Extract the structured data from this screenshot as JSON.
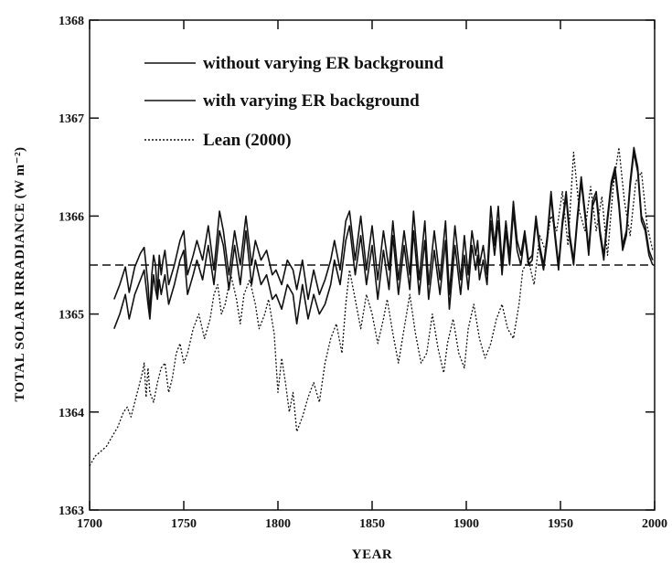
{
  "chart_data": {
    "type": "line",
    "xlabel": "YEAR",
    "ylabel": "TOTAL SOLAR IRRADIANCE (W m⁻²)",
    "xlim": [
      1700,
      2000
    ],
    "ylim": [
      1363,
      1368
    ],
    "xticks": [
      "1700",
      "1750",
      "1800",
      "1850",
      "1900",
      "1950",
      "2000"
    ],
    "yticks": [
      "1363",
      "1364",
      "1365",
      "1366",
      "1367",
      "1368"
    ],
    "grid": false,
    "legend_position": "top-left",
    "reference_line": {
      "style": "dashed",
      "y": 1365.5
    },
    "series": [
      {
        "name": "without varying ER background",
        "style": "solid",
        "x": [
          1713,
          1716,
          1719,
          1721,
          1724,
          1727,
          1729,
          1731,
          1732,
          1733,
          1734,
          1735,
          1736,
          1737,
          1738,
          1739,
          1740,
          1742,
          1745,
          1748,
          1750,
          1752,
          1755,
          1757,
          1760,
          1763,
          1766,
          1769,
          1771,
          1774,
          1777,
          1780,
          1783,
          1786,
          1788,
          1791,
          1794,
          1797,
          1799,
          1802,
          1805,
          1808,
          1810,
          1813,
          1816,
          1819,
          1822,
          1825,
          1828,
          1830,
          1833,
          1836,
          1838,
          1841,
          1844,
          1847,
          1850,
          1853,
          1856,
          1859,
          1861,
          1864,
          1867,
          1870,
          1872,
          1875,
          1878,
          1880,
          1883,
          1886,
          1889,
          1891,
          1894,
          1897,
          1899,
          1901,
          1903,
          1905,
          1906,
          1907,
          1909,
          1911,
          1913,
          1915,
          1917,
          1919,
          1921,
          1923,
          1925,
          1927,
          1929,
          1931,
          1933,
          1935,
          1937,
          1939,
          1941,
          1943,
          1945,
          1947,
          1949,
          1951,
          1953,
          1955,
          1957,
          1959,
          1961,
          1963,
          1965,
          1967,
          1969,
          1971,
          1973,
          1975,
          1977,
          1979,
          1981,
          1983,
          1985,
          1987,
          1989,
          1991,
          1993,
          1995,
          1997,
          1999
        ],
        "values": [
          1365.15,
          1365.3,
          1365.48,
          1365.22,
          1365.48,
          1365.62,
          1365.68,
          1365.3,
          1365.0,
          1365.4,
          1365.6,
          1365.5,
          1365.2,
          1365.6,
          1365.4,
          1365.55,
          1365.65,
          1365.3,
          1365.5,
          1365.75,
          1365.85,
          1365.4,
          1365.6,
          1365.75,
          1365.55,
          1365.9,
          1365.45,
          1366.05,
          1365.85,
          1365.4,
          1365.85,
          1365.5,
          1366.0,
          1365.5,
          1365.75,
          1365.55,
          1365.65,
          1365.4,
          1365.45,
          1365.3,
          1365.55,
          1365.45,
          1365.25,
          1365.55,
          1365.15,
          1365.45,
          1365.2,
          1365.35,
          1365.55,
          1365.75,
          1365.45,
          1365.95,
          1366.05,
          1365.55,
          1366.0,
          1365.45,
          1365.9,
          1365.35,
          1365.85,
          1365.45,
          1365.95,
          1365.35,
          1365.85,
          1365.4,
          1366.05,
          1365.35,
          1365.95,
          1365.3,
          1365.85,
          1365.35,
          1365.95,
          1365.2,
          1365.9,
          1365.35,
          1365.8,
          1365.4,
          1365.85,
          1365.6,
          1365.75,
          1365.5,
          1365.7,
          1365.4,
          1366.1,
          1365.7,
          1366.1,
          1365.5,
          1365.95,
          1365.6,
          1366.15,
          1365.75,
          1365.6,
          1365.85,
          1365.55,
          1365.6,
          1366.0,
          1365.7,
          1365.5,
          1365.8,
          1366.25,
          1365.85,
          1365.5,
          1365.95,
          1366.25,
          1365.8,
          1365.55,
          1366.0,
          1366.4,
          1366.05,
          1365.65,
          1366.15,
          1366.25,
          1365.85,
          1365.6,
          1366.0,
          1366.35,
          1366.5,
          1366.15,
          1365.7,
          1365.85,
          1366.35,
          1366.7,
          1366.5,
          1366.0,
          1365.9,
          1365.65,
          1365.55
        ]
      },
      {
        "name": "with varying ER background",
        "style": "solid",
        "x": [
          1713,
          1716,
          1719,
          1721,
          1724,
          1727,
          1729,
          1731,
          1732,
          1733,
          1734,
          1735,
          1736,
          1737,
          1738,
          1739,
          1740,
          1742,
          1745,
          1748,
          1750,
          1752,
          1755,
          1757,
          1760,
          1763,
          1766,
          1769,
          1771,
          1774,
          1777,
          1780,
          1783,
          1786,
          1788,
          1791,
          1794,
          1797,
          1799,
          1802,
          1805,
          1808,
          1810,
          1813,
          1816,
          1819,
          1822,
          1825,
          1828,
          1830,
          1833,
          1836,
          1838,
          1841,
          1844,
          1847,
          1850,
          1853,
          1856,
          1859,
          1861,
          1864,
          1867,
          1870,
          1872,
          1875,
          1878,
          1880,
          1883,
          1886,
          1889,
          1891,
          1894,
          1897,
          1899,
          1901,
          1903,
          1905,
          1906,
          1907,
          1909,
          1911,
          1913,
          1915,
          1917,
          1919,
          1921,
          1923,
          1925,
          1927,
          1929,
          1931,
          1933,
          1935,
          1937,
          1939,
          1941,
          1943,
          1945,
          1947,
          1949,
          1951,
          1953,
          1955,
          1957,
          1959,
          1961,
          1963,
          1965,
          1967,
          1969,
          1971,
          1973,
          1975,
          1977,
          1979,
          1981,
          1983,
          1985,
          1987,
          1989,
          1991,
          1993,
          1995,
          1997,
          1999
        ],
        "values": [
          1364.85,
          1365.0,
          1365.2,
          1364.95,
          1365.2,
          1365.35,
          1365.45,
          1365.1,
          1364.95,
          1365.2,
          1365.4,
          1365.25,
          1365.15,
          1365.35,
          1365.2,
          1365.3,
          1365.4,
          1365.1,
          1365.3,
          1365.55,
          1365.65,
          1365.2,
          1365.4,
          1365.55,
          1365.35,
          1365.7,
          1365.3,
          1365.85,
          1365.7,
          1365.25,
          1365.7,
          1365.3,
          1365.85,
          1365.3,
          1365.55,
          1365.3,
          1365.4,
          1365.15,
          1365.2,
          1365.05,
          1365.3,
          1365.2,
          1364.9,
          1365.3,
          1364.95,
          1365.2,
          1365.0,
          1365.1,
          1365.3,
          1365.55,
          1365.3,
          1365.75,
          1365.9,
          1365.4,
          1365.8,
          1365.3,
          1365.7,
          1365.15,
          1365.65,
          1365.25,
          1365.8,
          1365.2,
          1365.7,
          1365.25,
          1365.85,
          1365.2,
          1365.75,
          1365.15,
          1365.65,
          1365.2,
          1365.75,
          1365.05,
          1365.7,
          1365.2,
          1365.6,
          1365.25,
          1365.7,
          1365.45,
          1365.6,
          1365.35,
          1365.55,
          1365.3,
          1365.95,
          1365.6,
          1365.95,
          1365.4,
          1365.85,
          1365.5,
          1366.05,
          1365.65,
          1365.5,
          1365.8,
          1365.5,
          1365.55,
          1365.95,
          1365.65,
          1365.45,
          1365.75,
          1366.2,
          1365.8,
          1365.45,
          1365.9,
          1366.2,
          1365.75,
          1365.5,
          1365.95,
          1366.35,
          1366.0,
          1365.6,
          1366.1,
          1366.2,
          1365.8,
          1365.55,
          1365.95,
          1366.3,
          1366.45,
          1366.1,
          1365.65,
          1365.8,
          1366.3,
          1366.65,
          1366.45,
          1365.95,
          1365.85,
          1365.6,
          1365.5
        ]
      },
      {
        "name": "Lean (2000)",
        "style": "dotted",
        "x": [
          1700,
          1703,
          1706,
          1709,
          1712,
          1715,
          1718,
          1720,
          1722,
          1724,
          1726,
          1728,
          1729,
          1730,
          1731,
          1732,
          1734,
          1736,
          1738,
          1740,
          1742,
          1744,
          1746,
          1748,
          1750,
          1752,
          1755,
          1758,
          1761,
          1764,
          1766,
          1768,
          1770,
          1772,
          1775,
          1778,
          1780,
          1782,
          1785,
          1788,
          1790,
          1793,
          1795,
          1798,
          1800,
          1802,
          1804,
          1806,
          1808,
          1810,
          1813,
          1816,
          1819,
          1822,
          1825,
          1828,
          1831,
          1834,
          1836,
          1838,
          1841,
          1844,
          1847,
          1850,
          1853,
          1856,
          1858,
          1861,
          1864,
          1867,
          1870,
          1873,
          1876,
          1879,
          1882,
          1885,
          1888,
          1890,
          1893,
          1896,
          1899,
          1901,
          1904,
          1907,
          1910,
          1913,
          1916,
          1919,
          1922,
          1925,
          1928,
          1930,
          1933,
          1936,
          1939,
          1942,
          1945,
          1948,
          1951,
          1954,
          1957,
          1960,
          1963,
          1966,
          1969,
          1972,
          1975,
          1978,
          1981,
          1984,
          1987,
          1990,
          1993,
          1996,
          1999
        ],
        "values": [
          1363.45,
          1363.55,
          1363.6,
          1363.65,
          1363.75,
          1363.85,
          1364.0,
          1364.05,
          1363.95,
          1364.1,
          1364.25,
          1364.4,
          1364.5,
          1364.15,
          1364.45,
          1364.2,
          1364.1,
          1364.3,
          1364.45,
          1364.5,
          1364.2,
          1364.35,
          1364.6,
          1364.7,
          1364.5,
          1364.6,
          1364.85,
          1365.0,
          1364.75,
          1364.95,
          1365.2,
          1365.3,
          1365.0,
          1365.1,
          1365.4,
          1365.15,
          1364.9,
          1365.2,
          1365.35,
          1365.1,
          1364.85,
          1365.0,
          1365.15,
          1364.8,
          1364.2,
          1364.55,
          1364.3,
          1364.0,
          1364.2,
          1363.8,
          1363.95,
          1364.15,
          1364.3,
          1364.1,
          1364.5,
          1364.75,
          1364.9,
          1364.6,
          1365.1,
          1365.45,
          1365.15,
          1364.85,
          1365.2,
          1365.0,
          1364.7,
          1364.95,
          1365.15,
          1364.8,
          1364.5,
          1364.85,
          1365.2,
          1364.8,
          1364.5,
          1364.6,
          1365.0,
          1364.65,
          1364.4,
          1364.7,
          1364.95,
          1364.6,
          1364.45,
          1364.85,
          1365.1,
          1364.75,
          1364.55,
          1364.7,
          1364.95,
          1365.1,
          1364.85,
          1364.75,
          1365.1,
          1365.45,
          1365.55,
          1365.3,
          1365.8,
          1365.65,
          1366.0,
          1365.85,
          1366.25,
          1365.7,
          1366.65,
          1366.05,
          1365.85,
          1366.3,
          1365.85,
          1366.2,
          1365.6,
          1366.3,
          1366.7,
          1366.15,
          1365.8,
          1366.35,
          1366.45,
          1365.9,
          1365.65
        ]
      }
    ]
  }
}
